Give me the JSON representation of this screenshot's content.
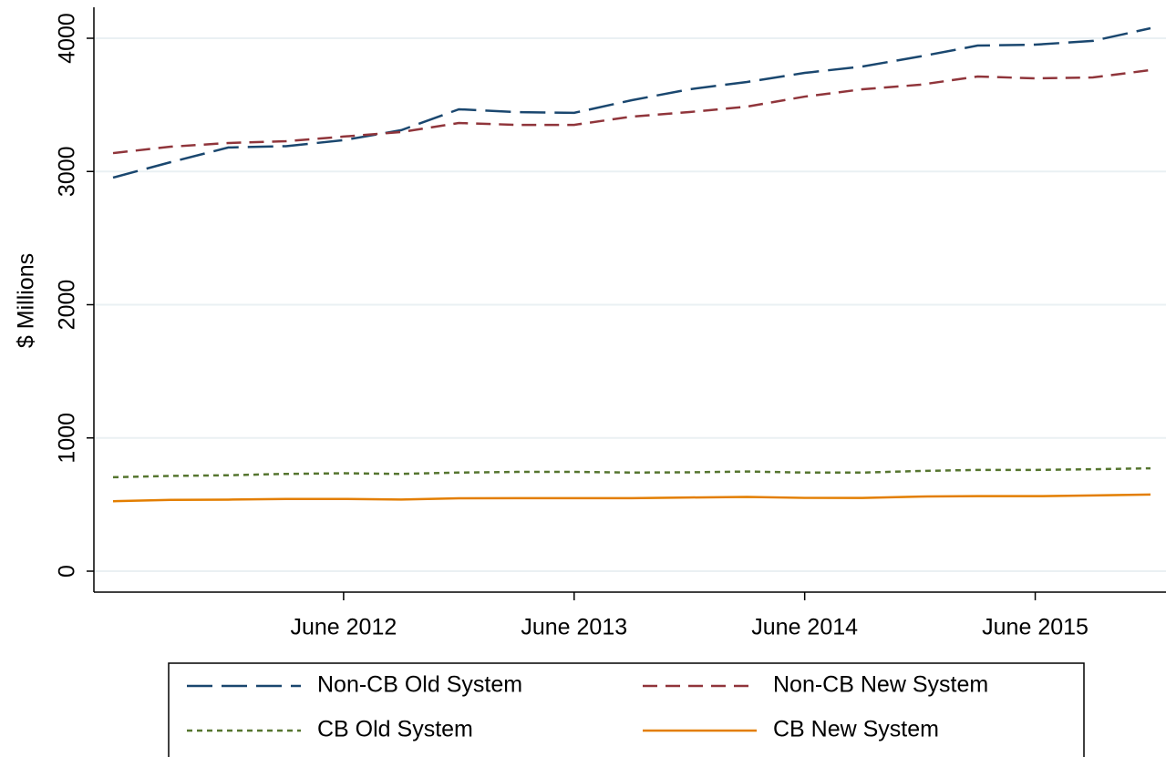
{
  "chart_data": {
    "type": "line",
    "y_label": "$ Millions",
    "categories": [
      null,
      null,
      null,
      null,
      "June 2012",
      null,
      null,
      null,
      "June 2013",
      null,
      null,
      null,
      "June 2014",
      null,
      null,
      null,
      "June 2015",
      null,
      null
    ],
    "series": [
      {
        "name": "Non-CB Old System",
        "color": "#1a476f",
        "dash": "long-dash",
        "values": [
          2954,
          3070,
          3180,
          3190,
          3235,
          3310,
          3467,
          3446,
          3440,
          3535,
          3617,
          3672,
          3740,
          3788,
          3863,
          3945,
          3952,
          3980,
          4075
        ]
      },
      {
        "name": "Non-CB New System",
        "color": "#90353b",
        "dash": "dash",
        "values": [
          3138,
          3186,
          3214,
          3227,
          3262,
          3296,
          3364,
          3350,
          3350,
          3412,
          3446,
          3487,
          3562,
          3617,
          3651,
          3713,
          3699,
          3706,
          3761
        ]
      },
      {
        "name": "CB Old System",
        "color": "#55752f",
        "dash": "dot",
        "values": [
          705,
          715,
          720,
          730,
          735,
          730,
          740,
          745,
          745,
          740,
          742,
          748,
          740,
          740,
          752,
          760,
          760,
          765,
          772
        ]
      },
      {
        "name": "CB New System",
        "color": "#e37e00",
        "dash": "solid",
        "values": [
          525,
          535,
          537,
          542,
          542,
          538,
          547,
          548,
          548,
          548,
          553,
          557,
          550,
          550,
          560,
          563,
          563,
          568,
          575
        ]
      }
    ],
    "ylim": [
      0,
      4000
    ],
    "yticks": [
      0,
      1000,
      2000,
      3000,
      4000
    ],
    "grid": true,
    "legend": "bottom"
  }
}
